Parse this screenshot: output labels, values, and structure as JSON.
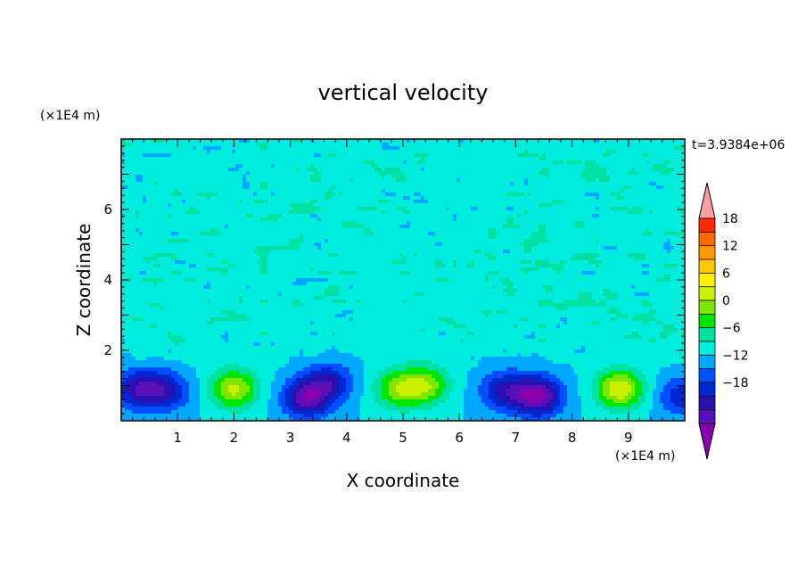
{
  "chart_data": {
    "type": "heatmap",
    "title": "vertical velocity",
    "xlabel": "X coordinate",
    "ylabel": "Z coordinate",
    "x_unit": "(×1E4 m)",
    "y_unit": "(×1E4 m)",
    "time_label": "t=3.9384e+06",
    "xlim": [
      0,
      10
    ],
    "ylim": [
      0,
      8
    ],
    "x_ticks": [
      "1",
      "2",
      "3",
      "4",
      "5",
      "6",
      "7",
      "8",
      "9"
    ],
    "y_ticks": [
      "2",
      "4",
      "6"
    ],
    "colorbar": {
      "range": [
        -21,
        21
      ],
      "step": 3,
      "tick_labels": [
        "18",
        "12",
        "6",
        "0",
        "−6",
        "−12",
        "−18"
      ],
      "extend": "both"
    },
    "features": [
      {
        "kind": "updraft",
        "x": 2.0,
        "z": 0.9,
        "peak": 13
      },
      {
        "kind": "downdraft",
        "x": 0.3,
        "z": 0.9,
        "peak": -11
      },
      {
        "kind": "downdraft",
        "x": 0.8,
        "z": 0.85,
        "peak": -9
      },
      {
        "kind": "downdraft",
        "x": 3.3,
        "z": 0.65,
        "peak": -14
      },
      {
        "kind": "downdraft",
        "x": 3.7,
        "z": 1.1,
        "peak": -9
      },
      {
        "kind": "updraft",
        "x": 4.9,
        "z": 0.9,
        "peak": 10
      },
      {
        "kind": "updraft",
        "x": 5.4,
        "z": 1.0,
        "peak": 11
      },
      {
        "kind": "downdraft",
        "x": 6.8,
        "z": 0.85,
        "peak": -10
      },
      {
        "kind": "downdraft",
        "x": 7.4,
        "z": 0.7,
        "peak": -16
      },
      {
        "kind": "updraft",
        "x": 8.85,
        "z": 0.9,
        "peak": 15
      },
      {
        "kind": "downdraft",
        "x": 9.95,
        "z": 0.7,
        "peak": -8
      }
    ],
    "grid": false,
    "colors": {
      "levels": [
        "#8a00aa",
        "#5a10b8",
        "#2a10b0",
        "#0028d0",
        "#0050ff",
        "#00a8ff",
        "#00ecdc",
        "#00e0a0",
        "#00e600",
        "#7ee600",
        "#c8f000",
        "#fff000",
        "#ffc800",
        "#ff9a00",
        "#ff6a00",
        "#ff2800",
        "#ff9e9e"
      ]
    }
  }
}
